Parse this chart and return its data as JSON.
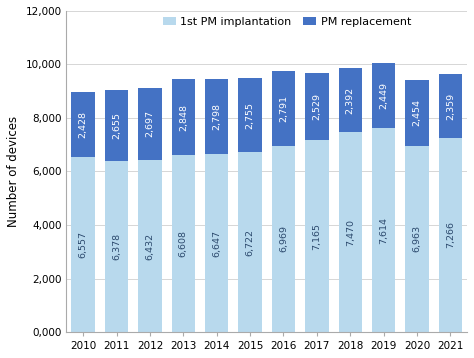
{
  "years": [
    2010,
    2011,
    2012,
    2013,
    2014,
    2015,
    2016,
    2017,
    2018,
    2019,
    2020,
    2021
  ],
  "first_implant": [
    6557,
    6378,
    6432,
    6608,
    6647,
    6722,
    6969,
    7165,
    7470,
    7614,
    6963,
    7266
  ],
  "replacement": [
    2428,
    2655,
    2697,
    2848,
    2798,
    2755,
    2791,
    2529,
    2392,
    2449,
    2454,
    2359
  ],
  "color_first": "#b8d9ed",
  "color_replace": "#4472c4",
  "ylabel": "Number of devices",
  "legend_first": "1st PM implantation",
  "legend_replace": "PM replacement",
  "ylim": [
    0,
    12000
  ],
  "yticks": [
    0,
    2000,
    4000,
    6000,
    8000,
    10000,
    12000
  ],
  "ytick_labels": [
    "0,000",
    "2,000",
    "4,000",
    "6,000",
    "8,000",
    "10,000",
    "12,000"
  ],
  "bar_width": 0.7,
  "label_fontsize": 6.8,
  "axis_fontsize": 8.5,
  "legend_fontsize": 8.0,
  "first_label_color": "#2c4a6e",
  "replace_label_color": "white"
}
